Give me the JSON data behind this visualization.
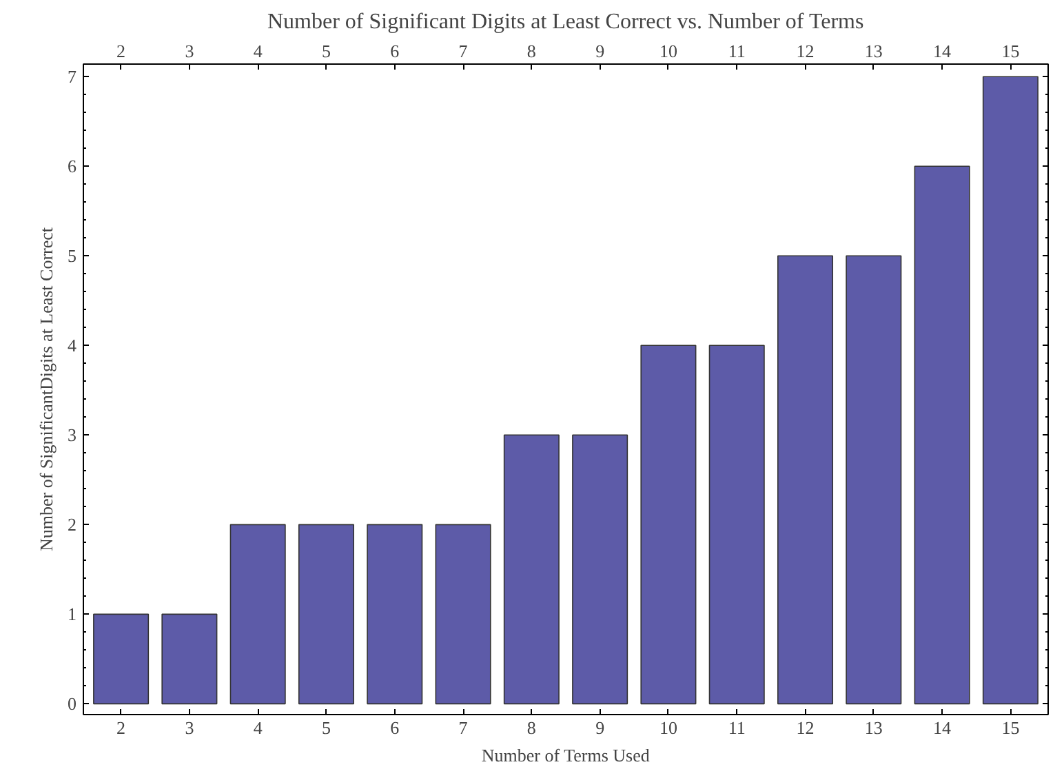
{
  "chart_data": {
    "type": "bar",
    "title": "Number of Significant Digits at Least Correct vs. Number of Terms",
    "xlabel": "Number of Terms Used",
    "ylabel": "Number of SignificantDigits at Least Correct",
    "categories": [
      "2",
      "3",
      "4",
      "5",
      "6",
      "7",
      "8",
      "9",
      "10",
      "11",
      "12",
      "13",
      "14",
      "15"
    ],
    "values": [
      1,
      1,
      2,
      2,
      2,
      2,
      3,
      3,
      4,
      4,
      5,
      5,
      6,
      7
    ],
    "color": "#5d5ba8",
    "ylim": [
      -0.12,
      7.14
    ],
    "yticks": [
      0,
      1,
      2,
      3,
      4,
      5,
      6,
      7
    ],
    "grid": false
  }
}
